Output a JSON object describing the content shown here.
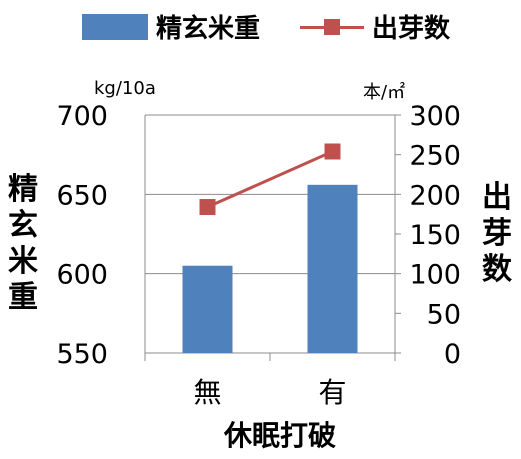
{
  "legend": {
    "bar_label": "精玄米重",
    "line_label": "出芽数"
  },
  "units": {
    "left": "kg/10a",
    "right": "本/㎡"
  },
  "ylabel_left": "精玄米重",
  "ylabel_right": "出芽数",
  "xlabel": "休眠打破",
  "colors": {
    "bar": "#4f81bd",
    "line": "#c0504d",
    "grid": "#8c8c8c",
    "axis": "#8c8c8c"
  },
  "chart_data": {
    "type": "bar+line",
    "categories": [
      "無",
      "有"
    ],
    "series": [
      {
        "name": "精玄米重",
        "type": "bar",
        "axis": "left",
        "values": [
          605,
          656
        ]
      },
      {
        "name": "出芽数",
        "type": "line",
        "axis": "right",
        "values": [
          184,
          254
        ]
      }
    ],
    "y_left": {
      "label": "精玄米重",
      "unit": "kg/10a",
      "lim": [
        550,
        700
      ],
      "ticks": [
        550,
        600,
        650,
        700
      ]
    },
    "y_right": {
      "label": "出芽数",
      "unit": "本/㎡",
      "lim": [
        0,
        300
      ],
      "ticks": [
        0,
        50,
        100,
        150,
        200,
        250,
        300
      ]
    },
    "xlabel": "休眠打破",
    "grid": "horizontal",
    "legend_position": "top"
  }
}
